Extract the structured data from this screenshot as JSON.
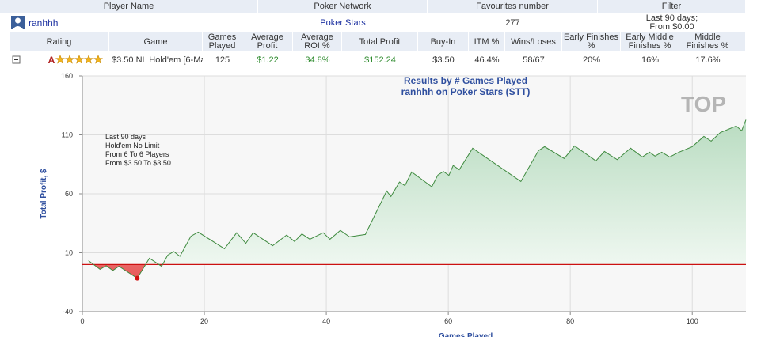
{
  "header": {
    "columns": [
      "Player Name",
      "Poker Network",
      "Favourites number",
      "Filter"
    ]
  },
  "player": {
    "name": "ranhhh",
    "network": "Poker Stars",
    "favourites": 277,
    "filter": [
      "Last 90 days;",
      "From $0.00"
    ]
  },
  "stats": {
    "columns": [
      "Rating",
      "Game",
      "Games Played",
      "Average Profit",
      "Average ROI %",
      "Total Profit",
      "Buy-In",
      "ITM %",
      "Wins/Loses",
      "Early Finishes %",
      "Early Middle Finishes %",
      "Middle Finishes %"
    ],
    "row": [
      "A",
      "$3.50 NL Hold'em [6-Ma",
      125,
      "$1.22",
      "34.8%",
      "$152.24",
      "$3.50",
      "46.4%",
      "58/67",
      "20%",
      "16%",
      "17.6%"
    ],
    "stars": 5
  },
  "chart_data": {
    "type": "line",
    "title": "Results by # Games Played",
    "subtitle": "ranhhh on Poker Stars (STT)",
    "annotations": [
      "Last 90 days",
      "Hold'em No Limit",
      "From 6 To 6 Players",
      "From $3.50 To $3.50"
    ],
    "x_label": "Games Played",
    "y_label": "Total Profit, $",
    "watermark": "TOP",
    "x": [
      1,
      2.9,
      3.9,
      5,
      6,
      9,
      11,
      13,
      14,
      15,
      16,
      17.8,
      19,
      23.3,
      25.3,
      26.8,
      28,
      31.2,
      33.5,
      34.8,
      36,
      37.3,
      39.5,
      40.6,
      42.3,
      43.8,
      46.4,
      49.9,
      50.6,
      52,
      52.9,
      54,
      57.3,
      58.3,
      59.2,
      60.1,
      60.8,
      61.8,
      64,
      71.9,
      74.8,
      75.8,
      79,
      80.7,
      84.2,
      85.6,
      87.7,
      89.9,
      91.8,
      93,
      93.9,
      95,
      96.3,
      97.8,
      100,
      101.9,
      103.1,
      104.6,
      107.2,
      108.1,
      108.8
    ],
    "values": [
      3.3,
      -4,
      -1,
      -5,
      -1.5,
      -11.6,
      5.3,
      -1.5,
      8,
      11,
      7,
      24,
      27.5,
      13.4,
      27,
      18,
      27,
      16,
      25,
      19.5,
      26,
      21.5,
      27,
      21.5,
      29,
      23.5,
      25.5,
      62.4,
      57.7,
      70,
      67,
      78.5,
      66,
      76,
      79,
      75.7,
      84,
      80.5,
      98.7,
      70.5,
      96.7,
      100,
      90,
      100.7,
      88,
      96,
      89,
      98.7,
      91.3,
      95.3,
      92,
      95.3,
      91.3,
      95.3,
      100,
      108.7,
      104.7,
      112,
      117.5,
      113.5,
      122.8
    ],
    "color": "#3f8a3f",
    "xlim": [
      0,
      108.8
    ],
    "ylim": [
      -40,
      160
    ],
    "xticks": [
      0,
      20,
      40,
      60,
      80,
      100
    ],
    "yticks": [
      -40,
      10,
      60,
      110,
      160
    ],
    "reference_line": {
      "value": 0,
      "color": "#cc1111"
    },
    "grid": true
  }
}
